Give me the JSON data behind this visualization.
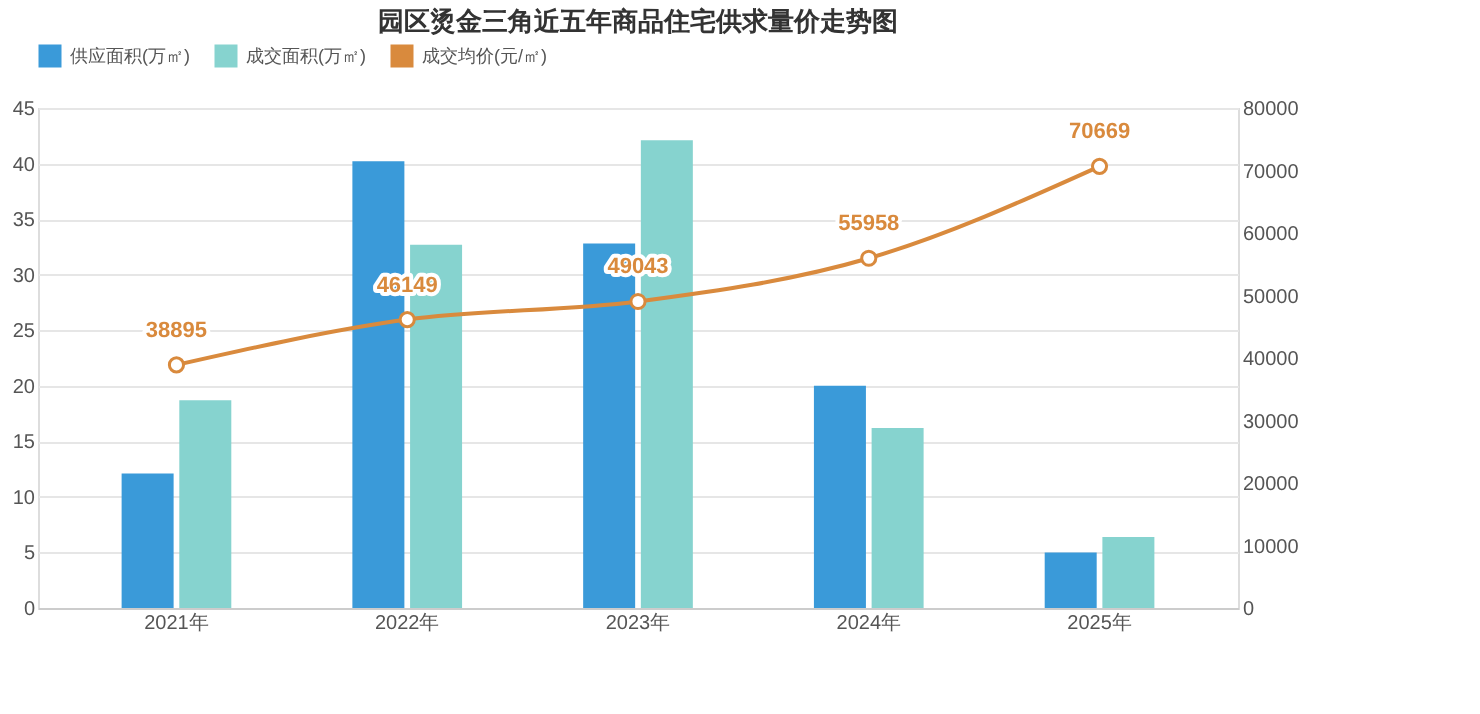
{
  "chart_data": {
    "type": "bar",
    "title": "园区烫金三角近五年商品住宅供求量价走势图",
    "categories": [
      "2021年",
      "2022年",
      "2023年",
      "2024年",
      "2025年"
    ],
    "series": [
      {
        "name": "供应面积(万㎡)",
        "color": "#3a9ad9",
        "values": [
          12.1,
          40.2,
          32.8,
          20.0,
          5.0
        ]
      },
      {
        "name": "成交面积(万㎡)",
        "color": "#86d3cf",
        "values": [
          18.7,
          32.7,
          42.1,
          16.2,
          6.4
        ]
      },
      {
        "name": "成交均价(元/㎡)",
        "type": "line",
        "axis": "y2",
        "color": "#d98a3d",
        "marker": "circle",
        "values": [
          38895,
          46149,
          49043,
          55958,
          70669
        ],
        "value_labels": [
          "38895",
          "46149",
          "49043",
          "55958",
          "70669"
        ]
      }
    ],
    "ylim": [
      0,
      45
    ],
    "yticks": [
      0,
      5,
      10,
      15,
      20,
      25,
      30,
      35,
      40,
      45
    ],
    "y2lim": [
      0,
      80000
    ],
    "y2ticks": [
      0,
      10000,
      20000,
      30000,
      40000,
      50000,
      60000,
      70000,
      80000
    ],
    "grid": "y",
    "legend": "top"
  }
}
